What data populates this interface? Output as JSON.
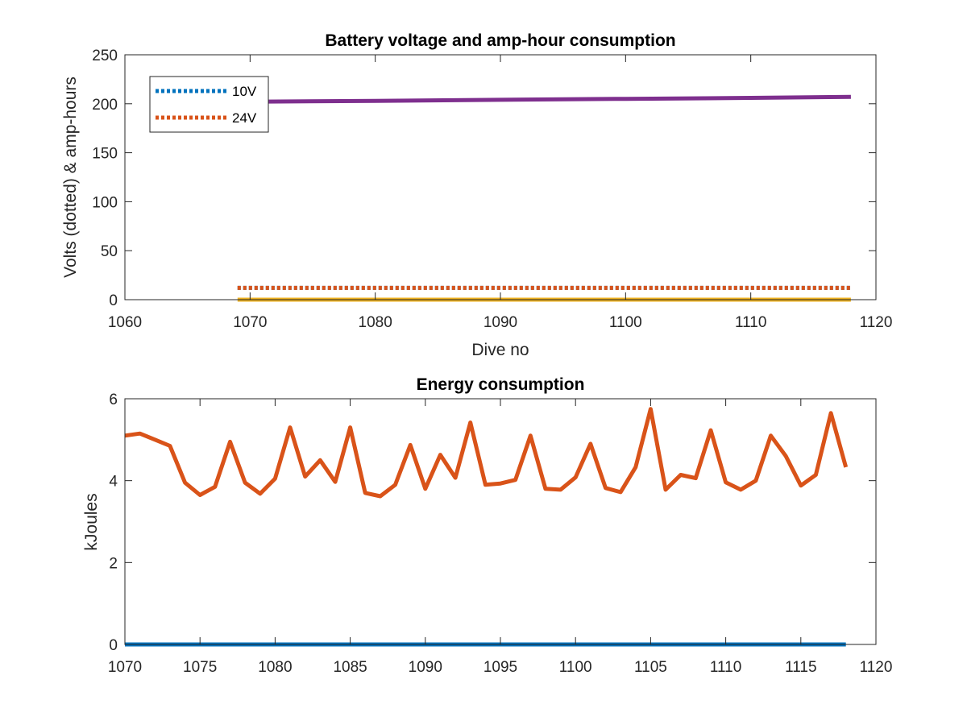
{
  "chart_data": [
    {
      "type": "line",
      "title": "Battery voltage and amp-hour consumption",
      "xlabel": "Dive no",
      "ylabel": "Volts (dotted) & amp-hours",
      "xlim": [
        1060,
        1120
      ],
      "ylim": [
        0,
        250
      ],
      "xticks": [
        "1060",
        "1070",
        "1080",
        "1090",
        "1100",
        "1110",
        "1120"
      ],
      "yticks": [
        "0",
        "50",
        "100",
        "150",
        "200",
        "250"
      ],
      "legend_position": "top-left",
      "series": [
        {
          "name": "10V",
          "style": "dotted",
          "color": "#0072BD",
          "x": [
            1069,
            1118
          ],
          "y": [
            12,
            12
          ]
        },
        {
          "name": "24V",
          "style": "dotted",
          "color": "#D95319",
          "x": [
            1069,
            1118
          ],
          "y": [
            12,
            12
          ]
        },
        {
          "style": "solid",
          "color": "#7E2F8E",
          "x": [
            1069,
            1080,
            1090,
            1100,
            1110,
            1118
          ],
          "y": [
            202,
            203,
            204,
            205,
            206,
            207
          ]
        },
        {
          "style": "solid",
          "color": "#EDB120",
          "x": [
            1069,
            1118
          ],
          "y": [
            0,
            0
          ]
        }
      ]
    },
    {
      "type": "line",
      "title": "Energy consumption",
      "xlabel": "",
      "ylabel": "kJoules",
      "xlim": [
        1070,
        1120
      ],
      "ylim": [
        0,
        6
      ],
      "xticks": [
        "1070",
        "1075",
        "1080",
        "1085",
        "1090",
        "1095",
        "1100",
        "1105",
        "1110",
        "1115",
        "1120"
      ],
      "yticks": [
        "0",
        "2",
        "4",
        "6"
      ],
      "series": [
        {
          "style": "solid",
          "color": "#0072BD",
          "x": [
            1070,
            1118
          ],
          "y": [
            0,
            0
          ]
        },
        {
          "style": "solid",
          "color": "#D95319",
          "x": [
            1070,
            1071,
            1072,
            1073,
            1074,
            1075,
            1076,
            1077,
            1078,
            1079,
            1080,
            1081,
            1082,
            1083,
            1084,
            1085,
            1086,
            1087,
            1088,
            1089,
            1090,
            1091,
            1092,
            1093,
            1094,
            1095,
            1096,
            1097,
            1098,
            1099,
            1100,
            1101,
            1102,
            1103,
            1104,
            1105,
            1106,
            1107,
            1108,
            1109,
            1110,
            1111,
            1112,
            1113,
            1114,
            1115,
            1116,
            1117,
            1118
          ],
          "y": [
            5.1,
            5.15,
            5.0,
            4.85,
            3.95,
            3.65,
            3.85,
            4.95,
            3.95,
            3.68,
            4.05,
            5.3,
            4.1,
            4.5,
            3.97,
            5.3,
            3.7,
            3.62,
            3.9,
            4.87,
            3.8,
            4.63,
            4.07,
            5.42,
            3.9,
            3.93,
            4.02,
            5.1,
            3.8,
            3.78,
            4.08,
            4.9,
            3.82,
            3.72,
            4.33,
            5.75,
            3.78,
            4.14,
            4.06,
            5.23,
            3.96,
            3.78,
            4.0,
            5.1,
            4.6,
            3.88,
            4.14,
            5.65,
            4.33
          ]
        }
      ]
    }
  ]
}
